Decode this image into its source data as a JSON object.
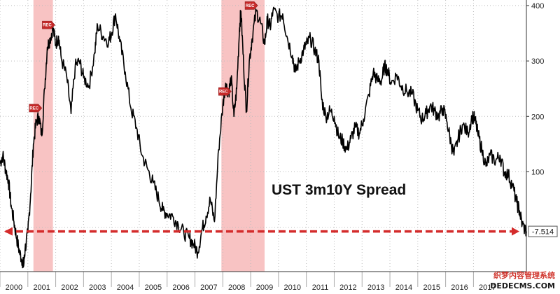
{
  "chart_data": {
    "type": "line",
    "title": "UST 3m10Y Spread",
    "xlabel": "",
    "ylabel": "",
    "xlim": [
      2000.0,
      2018.6
    ],
    "ylim": [
      -80,
      410
    ],
    "y_ticks": [
      100,
      200,
      300,
      400
    ],
    "x_tick_labels": [
      "2000",
      "2001",
      "2002",
      "2003",
      "2004",
      "2005",
      "2006",
      "2007",
      "2008",
      "2009",
      "2010",
      "2011",
      "2012",
      "2013",
      "2014",
      "2015",
      "2016",
      "2017"
    ],
    "grid": true,
    "last_value": -7.514,
    "last_value_label": "-7.514",
    "recessions": [
      {
        "start": 2001.2,
        "end": 2001.9
      },
      {
        "start": 2007.95,
        "end": 2009.5
      }
    ],
    "markers": [
      {
        "label": "REC",
        "x": 2001.25,
        "y": 215
      },
      {
        "label": "REC",
        "x": 2001.72,
        "y": 365
      },
      {
        "label": "REC",
        "x": 2008.05,
        "y": 245
      },
      {
        "label": "REC",
        "x": 2009.0,
        "y": 400
      }
    ],
    "colors": {
      "line": "#000000",
      "recession_band": "#f7b8b8",
      "reference_line": "#d42b2b",
      "marker": "#c62828",
      "grid": "#bbbbbb"
    },
    "series": [
      {
        "values": [
          [
            2000.0,
            115
          ],
          [
            2000.1,
            130
          ],
          [
            2000.2,
            105
          ],
          [
            2000.3,
            85
          ],
          [
            2000.4,
            40
          ],
          [
            2000.5,
            10
          ],
          [
            2000.6,
            -20
          ],
          [
            2000.7,
            -45
          ],
          [
            2000.8,
            -60
          ],
          [
            2000.85,
            -70
          ],
          [
            2000.9,
            -40
          ],
          [
            2001.0,
            -10
          ],
          [
            2001.1,
            60
          ],
          [
            2001.2,
            150
          ],
          [
            2001.3,
            190
          ],
          [
            2001.4,
            200
          ],
          [
            2001.5,
            165
          ],
          [
            2001.6,
            250
          ],
          [
            2001.7,
            325
          ],
          [
            2001.8,
            340
          ],
          [
            2001.9,
            360
          ],
          [
            2002.0,
            330
          ],
          [
            2002.1,
            345
          ],
          [
            2002.2,
            305
          ],
          [
            2002.4,
            270
          ],
          [
            2002.55,
            205
          ],
          [
            2002.7,
            290
          ],
          [
            2002.85,
            300
          ],
          [
            2003.0,
            270
          ],
          [
            2003.2,
            255
          ],
          [
            2003.4,
            315
          ],
          [
            2003.5,
            365
          ],
          [
            2003.7,
            345
          ],
          [
            2003.9,
            335
          ],
          [
            2004.0,
            350
          ],
          [
            2004.15,
            385
          ],
          [
            2004.3,
            335
          ],
          [
            2004.5,
            280
          ],
          [
            2004.7,
            215
          ],
          [
            2004.9,
            180
          ],
          [
            2005.1,
            130
          ],
          [
            2005.3,
            105
          ],
          [
            2005.5,
            80
          ],
          [
            2005.7,
            50
          ],
          [
            2005.85,
            30
          ],
          [
            2006.0,
            25
          ],
          [
            2006.2,
            20
          ],
          [
            2006.4,
            5
          ],
          [
            2006.6,
            -10
          ],
          [
            2006.8,
            -20
          ],
          [
            2006.95,
            -30
          ],
          [
            2007.1,
            -45
          ],
          [
            2007.25,
            -5
          ],
          [
            2007.4,
            20
          ],
          [
            2007.55,
            50
          ],
          [
            2007.7,
            10
          ],
          [
            2007.85,
            140
          ],
          [
            2008.0,
            220
          ],
          [
            2008.1,
            260
          ],
          [
            2008.2,
            240
          ],
          [
            2008.3,
            270
          ],
          [
            2008.4,
            200
          ],
          [
            2008.5,
            250
          ],
          [
            2008.6,
            360
          ],
          [
            2008.65,
            390
          ],
          [
            2008.75,
            290
          ],
          [
            2008.85,
            210
          ],
          [
            2008.95,
            300
          ],
          [
            2009.05,
            340
          ],
          [
            2009.2,
            390
          ],
          [
            2009.35,
            370
          ],
          [
            2009.5,
            330
          ],
          [
            2009.6,
            375
          ],
          [
            2009.7,
            360
          ],
          [
            2009.8,
            390
          ],
          [
            2010.0,
            380
          ],
          [
            2010.15,
            385
          ],
          [
            2010.3,
            345
          ],
          [
            2010.5,
            310
          ],
          [
            2010.6,
            280
          ],
          [
            2010.75,
            300
          ],
          [
            2010.9,
            320
          ],
          [
            2011.0,
            330
          ],
          [
            2011.15,
            340
          ],
          [
            2011.3,
            320
          ],
          [
            2011.45,
            300
          ],
          [
            2011.55,
            230
          ],
          [
            2011.7,
            200
          ],
          [
            2011.85,
            210
          ],
          [
            2012.0,
            200
          ],
          [
            2012.15,
            165
          ],
          [
            2012.3,
            155
          ],
          [
            2012.45,
            140
          ],
          [
            2012.6,
            160
          ],
          [
            2012.75,
            180
          ],
          [
            2012.9,
            170
          ],
          [
            2013.05,
            195
          ],
          [
            2013.25,
            240
          ],
          [
            2013.4,
            280
          ],
          [
            2013.55,
            265
          ],
          [
            2013.7,
            265
          ],
          [
            2013.8,
            290
          ],
          [
            2013.9,
            285
          ],
          [
            2014.05,
            260
          ],
          [
            2014.25,
            275
          ],
          [
            2014.4,
            255
          ],
          [
            2014.6,
            245
          ],
          [
            2014.8,
            240
          ],
          [
            2015.0,
            210
          ],
          [
            2015.15,
            195
          ],
          [
            2015.3,
            205
          ],
          [
            2015.45,
            220
          ],
          [
            2015.6,
            210
          ],
          [
            2015.75,
            200
          ],
          [
            2015.9,
            215
          ],
          [
            2016.05,
            190
          ],
          [
            2016.2,
            150
          ],
          [
            2016.3,
            130
          ],
          [
            2016.45,
            160
          ],
          [
            2016.6,
            185
          ],
          [
            2016.8,
            170
          ],
          [
            2016.95,
            200
          ],
          [
            2017.05,
            195
          ],
          [
            2017.15,
            170
          ],
          [
            2017.3,
            140
          ],
          [
            2017.45,
            110
          ],
          [
            2017.6,
            130
          ],
          [
            2017.8,
            120
          ],
          [
            2017.95,
            130
          ],
          [
            2018.1,
            100
          ],
          [
            2018.25,
            95
          ],
          [
            2018.4,
            75
          ],
          [
            2018.55,
            45
          ],
          [
            2018.65,
            30
          ],
          [
            2018.75,
            5
          ],
          [
            2018.9,
            -7.514
          ]
        ]
      }
    ]
  },
  "watermark": {
    "line1": "织梦内容管理系统",
    "line2": "DEDECMS.COM"
  }
}
